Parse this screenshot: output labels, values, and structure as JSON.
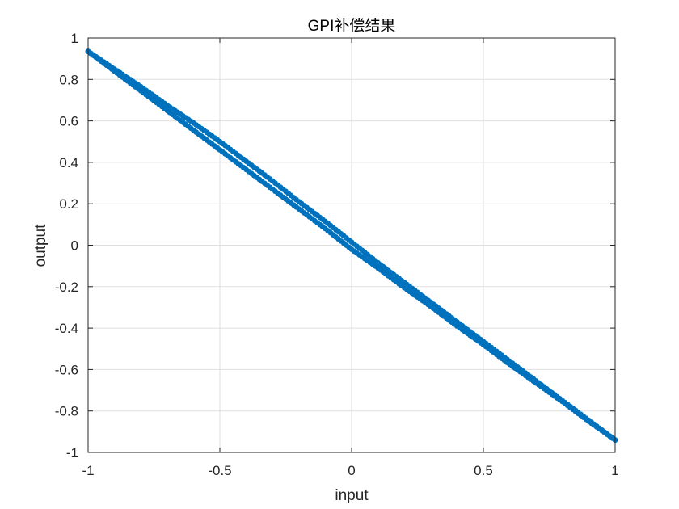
{
  "chart_data": {
    "type": "scatter",
    "title": "GPI补偿结果",
    "xlabel": "input",
    "ylabel": "output",
    "xlim": [
      -1,
      1
    ],
    "ylim": [
      -1,
      1
    ],
    "xticks": [
      -1,
      -0.5,
      0,
      0.5,
      1
    ],
    "xtick_labels": [
      "-1",
      "-0.5",
      "0",
      "0.5",
      "1"
    ],
    "yticks": [
      1,
      0.8,
      0.6,
      0.4,
      0.2,
      0,
      -0.2,
      -0.4,
      -0.6,
      -0.8,
      -1
    ],
    "ytick_labels": [
      "1",
      "0.8",
      "0.6",
      "0.4",
      "0.2",
      "0",
      "-0.2",
      "-0.4",
      "-0.6",
      "-0.8",
      "-1"
    ],
    "grid": true,
    "box": true,
    "series": [
      {
        "color": "#0072BD",
        "branch_upper": {
          "x": [
            -1.0,
            -0.9,
            -0.8,
            -0.7,
            -0.6,
            -0.5,
            -0.4,
            -0.3,
            -0.2,
            -0.1,
            0.0,
            0.1,
            0.2,
            0.3,
            0.4,
            0.5,
            0.6,
            0.7,
            0.8,
            0.9,
            1.0
          ],
          "y": [
            0.935,
            0.85,
            0.765,
            0.675,
            0.59,
            0.5,
            0.405,
            0.31,
            0.21,
            0.115,
            0.015,
            -0.085,
            -0.18,
            -0.275,
            -0.37,
            -0.465,
            -0.56,
            -0.655,
            -0.75,
            -0.845,
            -0.94
          ]
        },
        "branch_lower": {
          "x": [
            -1.0,
            -0.9,
            -0.8,
            -0.7,
            -0.6,
            -0.5,
            -0.4,
            -0.3,
            -0.2,
            -0.1,
            0.0,
            0.1,
            0.2,
            0.3,
            0.4,
            0.5,
            0.6,
            0.7,
            0.8,
            0.9,
            1.0
          ],
          "y": [
            0.935,
            0.84,
            0.745,
            0.65,
            0.555,
            0.46,
            0.365,
            0.27,
            0.175,
            0.08,
            -0.02,
            -0.11,
            -0.205,
            -0.295,
            -0.39,
            -0.48,
            -0.575,
            -0.665,
            -0.755,
            -0.85,
            -0.94
          ]
        },
        "marker": "filled-circle"
      }
    ]
  }
}
